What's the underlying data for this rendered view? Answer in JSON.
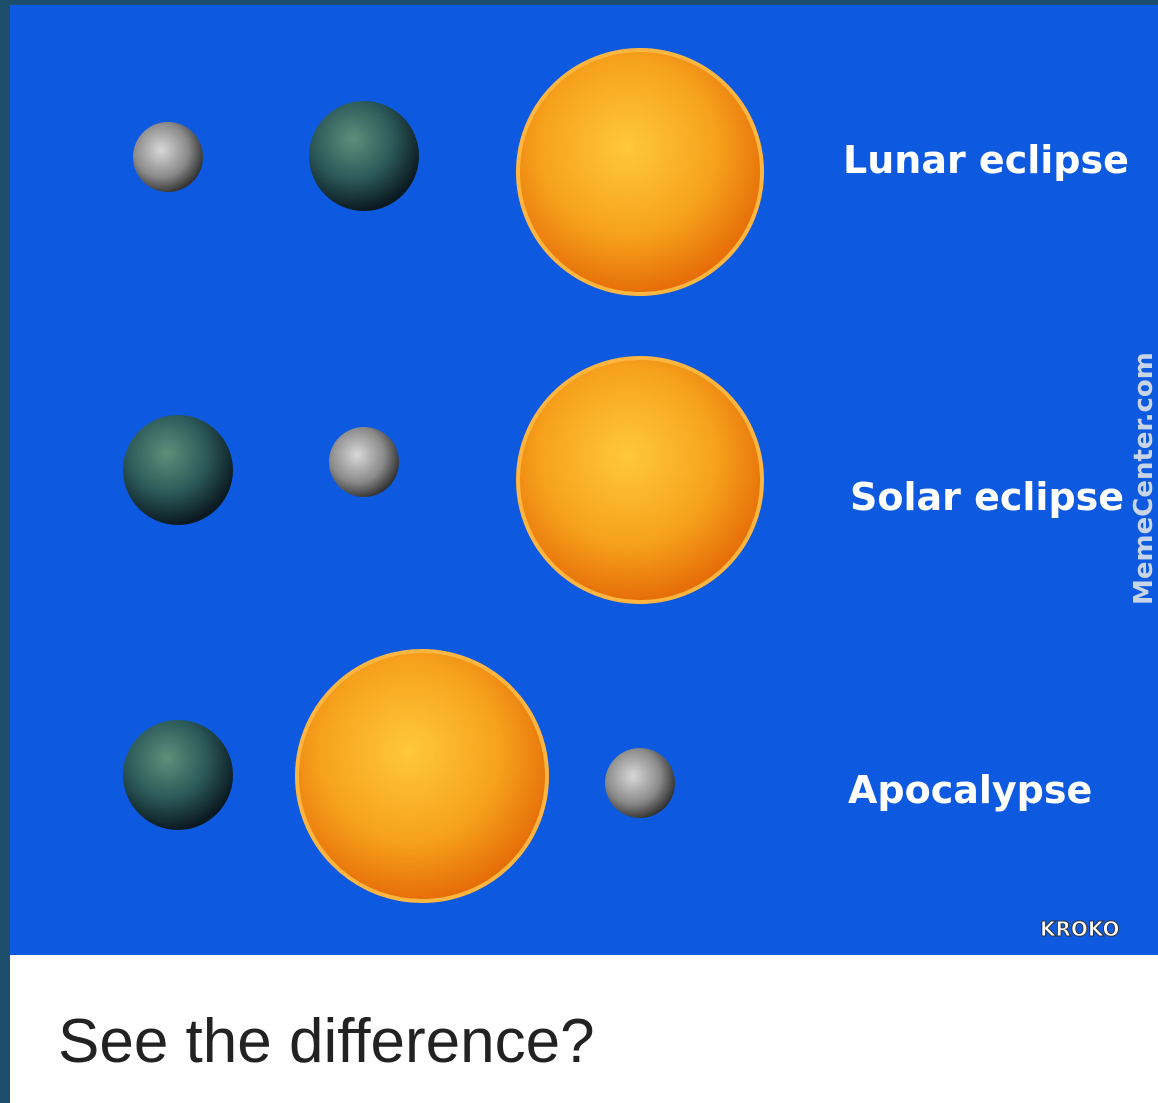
{
  "panel": {
    "rows": [
      {
        "label": "Lunar eclipse"
      },
      {
        "label": "Solar eclipse"
      },
      {
        "label": "Apocalypse"
      }
    ],
    "watermark": "MemeCenter.com",
    "credit": "KROKO"
  },
  "caption": "See the difference?"
}
